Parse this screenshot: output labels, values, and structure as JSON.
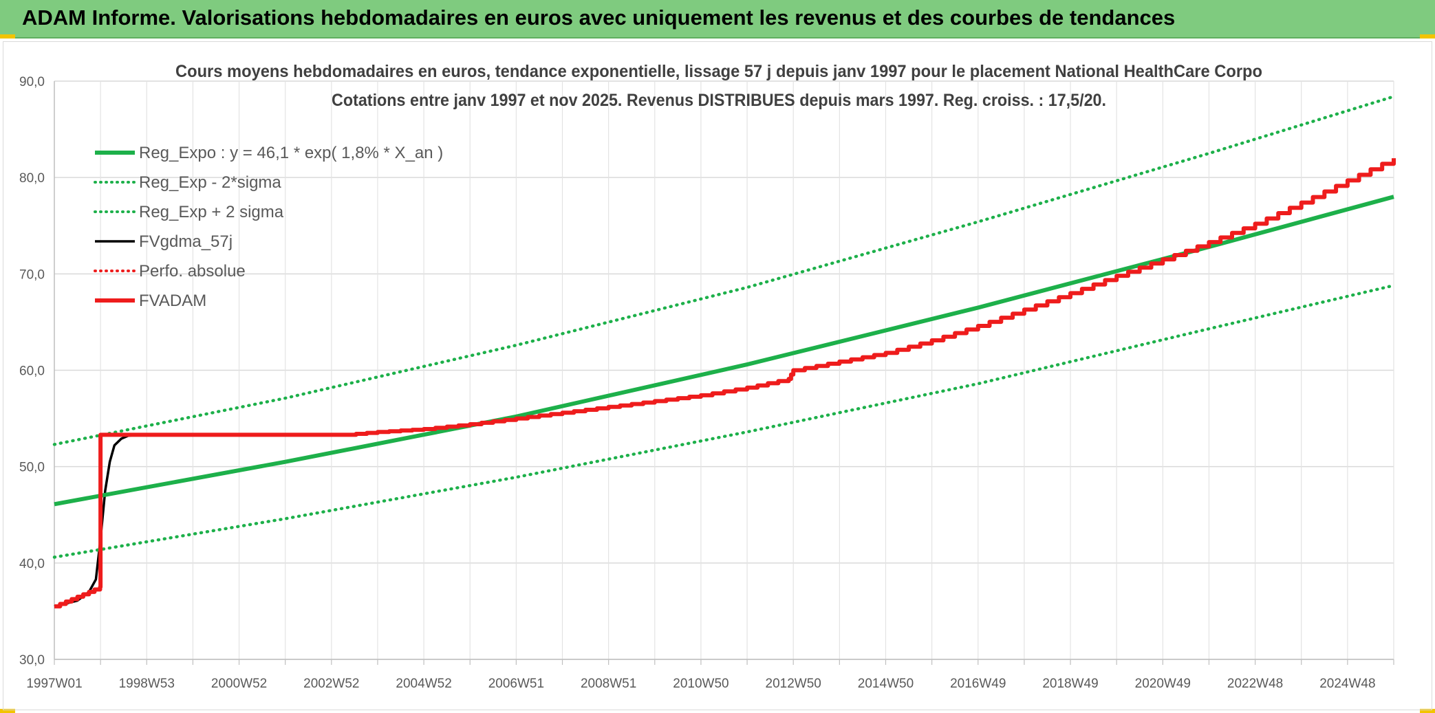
{
  "banner": {
    "title": "ADAM Informe. Valorisations hebdomadaires en euros avec uniquement les revenus et des courbes de tendances"
  },
  "colors": {
    "banner_bg": "#7fcb7f",
    "green": "#1db04a",
    "black": "#000000",
    "red": "#ee1c1c",
    "grid": "#d9d9d9"
  },
  "chart_data": {
    "type": "line",
    "title": "Cours moyens hebdomadaires en euros, tendance exponentielle, lissage 57 j depuis janv 1997 pour le placement National HealthCare Corpo",
    "subtitle": "Cotations entre janv 1997 et nov 2025. Revenus DISTRIBUES depuis mars 1997. Reg. croiss. : 17,5/20.",
    "xlabel": "",
    "ylabel": "",
    "xlim": [
      1997.0,
      2026.0
    ],
    "ylim": [
      30,
      90
    ],
    "y_ticks": [
      "30,0",
      "40,0",
      "50,0",
      "60,0",
      "70,0",
      "80,0",
      "90,0"
    ],
    "x_ticks": [
      {
        "x": 1997.0,
        "label": "1997W01"
      },
      {
        "x": 1999.0,
        "label": "1998W53"
      },
      {
        "x": 2001.0,
        "label": "2000W52"
      },
      {
        "x": 2003.0,
        "label": "2002W52"
      },
      {
        "x": 2005.0,
        "label": "2004W52"
      },
      {
        "x": 2007.0,
        "label": "2006W51"
      },
      {
        "x": 2009.0,
        "label": "2008W51"
      },
      {
        "x": 2011.0,
        "label": "2010W50"
      },
      {
        "x": 2013.0,
        "label": "2012W50"
      },
      {
        "x": 2015.0,
        "label": "2014W50"
      },
      {
        "x": 2017.0,
        "label": "2016W49"
      },
      {
        "x": 2019.0,
        "label": "2018W49"
      },
      {
        "x": 2021.0,
        "label": "2020W49"
      },
      {
        "x": 2023.0,
        "label": "2022W48"
      },
      {
        "x": 2025.0,
        "label": "2024W48"
      }
    ],
    "grid": true,
    "legend_position": "top-left",
    "series": [
      {
        "name": "Reg_Expo : y = 46,1 * exp( 1,8% *  X_an )",
        "style": "solid-thick",
        "color": "#1db04a",
        "x": [
          1997.0,
          2002.0,
          2007.0,
          2012.0,
          2017.0,
          2022.0,
          2026.0
        ],
        "y": [
          46.1,
          50.5,
          55.2,
          60.6,
          66.5,
          72.8,
          78.0
        ]
      },
      {
        "name": "Reg_Exp - 2*sigma",
        "style": "dotted",
        "color": "#1db04a",
        "x": [
          1997.0,
          2002.0,
          2007.0,
          2012.0,
          2017.0,
          2022.0,
          2026.0
        ],
        "y": [
          40.6,
          44.6,
          48.9,
          53.6,
          58.6,
          64.3,
          68.8
        ]
      },
      {
        "name": "Reg_Exp + 2 sigma",
        "style": "dotted",
        "color": "#1db04a",
        "x": [
          1997.0,
          2002.0,
          2007.0,
          2012.0,
          2017.0,
          2022.0,
          2026.0
        ],
        "y": [
          52.3,
          57.1,
          62.6,
          68.6,
          75.4,
          82.5,
          88.4
        ]
      },
      {
        "name": "FVgdma_57j",
        "style": "solid",
        "color": "#000000",
        "x": [
          1997.0,
          1997.5,
          1997.75,
          1997.9,
          1998.0,
          1998.1,
          1998.2,
          1998.3,
          1998.45,
          1998.6,
          1998.8,
          1999.0
        ],
        "y": [
          35.5,
          36.1,
          37.0,
          38.3,
          42.5,
          47.5,
          50.5,
          52.2,
          52.9,
          53.2,
          53.3,
          53.3
        ]
      },
      {
        "name": "Perfo. absolue",
        "style": "dotted",
        "color": "#ee1c1c",
        "x": [],
        "y": []
      },
      {
        "name": "FVADAM",
        "style": "solid-thick",
        "color": "#ee1c1c",
        "x": [
          1997.0,
          1997.25,
          1997.5,
          1997.75,
          1997.99,
          1998.0,
          2000.0,
          2003.3,
          2004.0,
          2005.0,
          2006.0,
          2007.0,
          2008.0,
          2009.0,
          2010.0,
          2011.0,
          2012.0,
          2012.9,
          2013.0,
          2014.0,
          2015.0,
          2016.0,
          2017.0,
          2018.0,
          2019.0,
          2020.0,
          2021.0,
          2022.0,
          2023.0,
          2024.0,
          2025.0,
          2026.0
        ],
        "y": [
          35.5,
          36.0,
          36.5,
          37.0,
          37.5,
          53.3,
          53.3,
          53.3,
          53.6,
          53.9,
          54.4,
          55.0,
          55.6,
          56.2,
          56.8,
          57.4,
          58.2,
          59.1,
          60.0,
          60.9,
          61.8,
          63.1,
          64.6,
          66.3,
          68.0,
          69.8,
          71.5,
          73.3,
          75.2,
          77.4,
          79.7,
          82.0
        ]
      }
    ]
  }
}
